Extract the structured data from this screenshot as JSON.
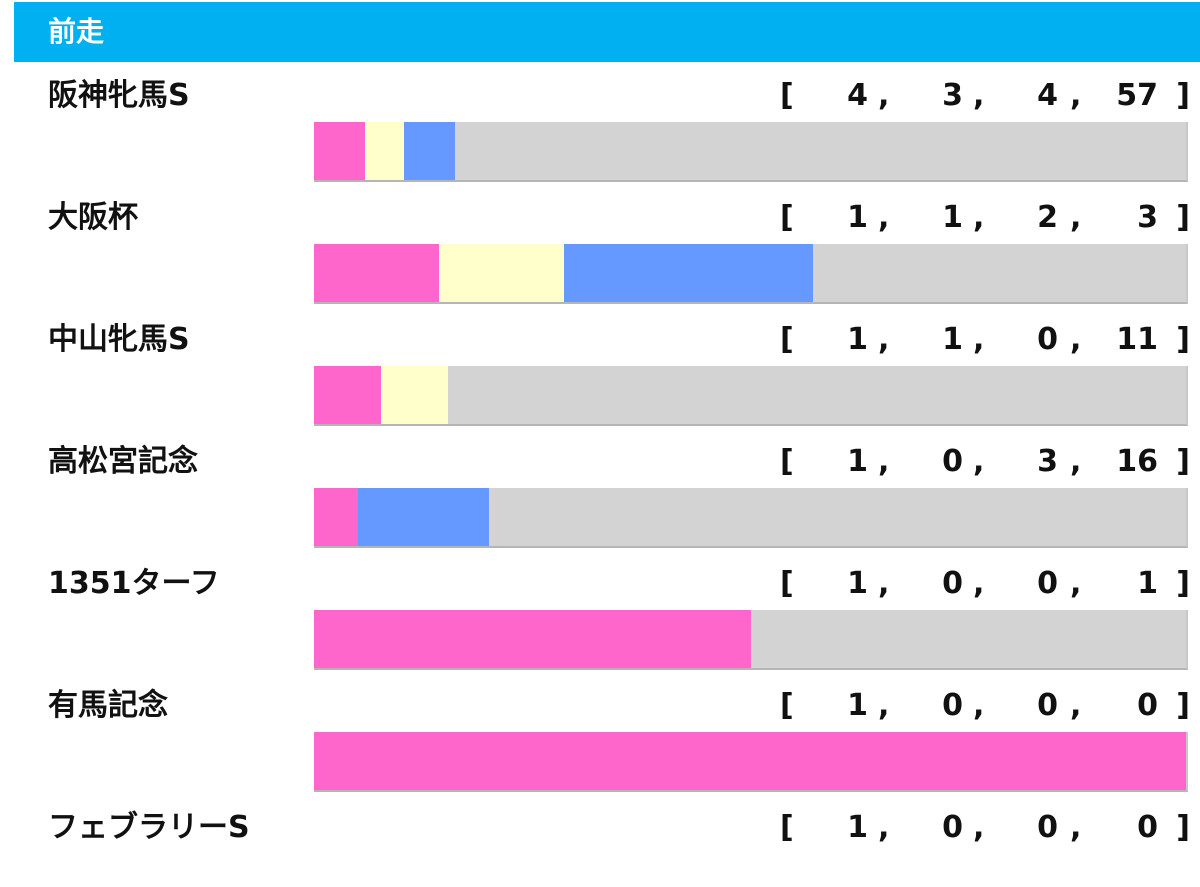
{
  "header": {
    "title": "前走"
  },
  "chart_data": {
    "type": "bar",
    "orientation": "horizontal-stacked",
    "segment_colors": {
      "first": "#ff66cc",
      "second": "#ffffcc",
      "third": "#6699ff",
      "other": "#d3d3d3"
    },
    "rows": [
      {
        "label": "阪神牝馬S",
        "values": [
          4,
          3,
          4,
          57
        ]
      },
      {
        "label": "大阪杯",
        "values": [
          1,
          1,
          2,
          3
        ]
      },
      {
        "label": "中山牝馬S",
        "values": [
          1,
          1,
          0,
          11
        ]
      },
      {
        "label": "高松宮記念",
        "values": [
          1,
          0,
          3,
          16
        ]
      },
      {
        "label": "1351ターフ",
        "values": [
          1,
          0,
          0,
          1
        ]
      },
      {
        "label": "有馬記念",
        "values": [
          1,
          0,
          0,
          0
        ]
      },
      {
        "label": "フェブラリーS",
        "values": [
          1,
          0,
          0,
          0
        ]
      }
    ]
  }
}
